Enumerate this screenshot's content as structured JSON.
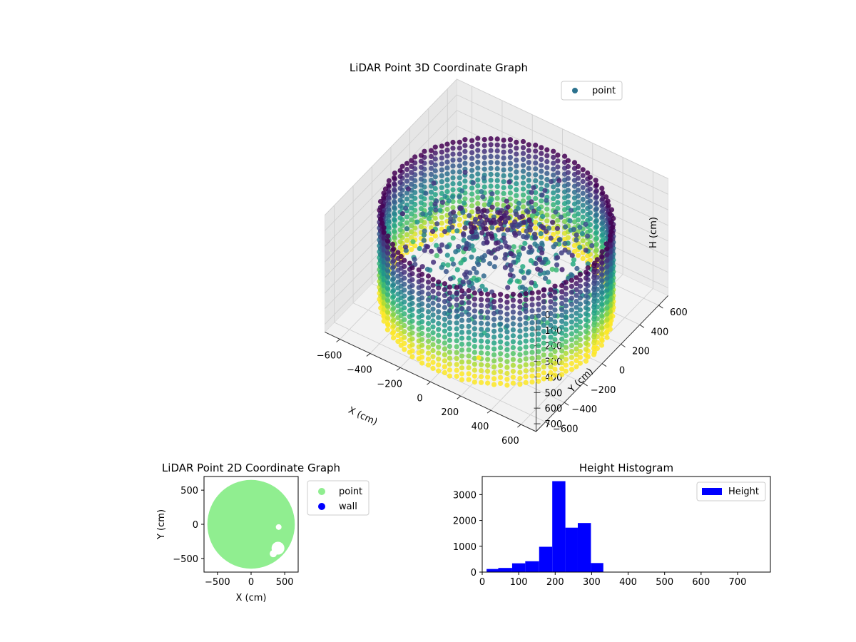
{
  "chart_data": [
    {
      "type": "scatter3d",
      "title": "LiDAR Point 3D Coordinate Graph",
      "xlabel": "X (cm)",
      "ylabel": "Y (cm)",
      "zlabel": "H (cm)",
      "xticks": [
        -600,
        -400,
        -200,
        0,
        200,
        400,
        600
      ],
      "yticks": [
        -600,
        -400,
        -200,
        0,
        200,
        400,
        600
      ],
      "zticks": [
        0,
        100,
        200,
        300,
        400,
        500,
        600,
        700
      ],
      "xlim": [
        -700,
        700
      ],
      "ylim": [
        -700,
        700
      ],
      "zlim": [
        0,
        750
      ],
      "z_inverted": true,
      "colormap": "viridis",
      "legend": [
        {
          "name": "point",
          "color": "#2c728e",
          "marker": "circle"
        }
      ],
      "legend_position": "upper-right",
      "wall_ring": {
        "center": [
          0,
          0
        ],
        "radius": 650,
        "h_range": [
          130,
          730
        ]
      },
      "center_cluster": {
        "x": [
          -150,
          150
        ],
        "y": [
          -150,
          150
        ],
        "h": [
          150,
          230
        ]
      },
      "outlier_point": {
        "x": 120,
        "y": -380,
        "h": 740,
        "color": "#fde725"
      }
    },
    {
      "type": "scatter",
      "title": "LiDAR Point 2D Coordinate Graph",
      "xlabel": "X (cm)",
      "ylabel": "Y (cm)",
      "xticks": [
        -500,
        0,
        500
      ],
      "yticks": [
        500,
        0,
        -500
      ],
      "xlim": [
        -700,
        700
      ],
      "ylim": [
        -700,
        700
      ],
      "series": [
        {
          "name": "point",
          "color": "#90ee90",
          "shape": "filled disk",
          "center": [
            0,
            0
          ],
          "radius": 650
        },
        {
          "name": "wall",
          "color": "#0000ff"
        }
      ],
      "legend_position": "outside-right"
    },
    {
      "type": "bar",
      "title": "Height Histogram",
      "xlabel": "",
      "ylabel": "",
      "xticks": [
        0,
        100,
        200,
        300,
        400,
        500,
        600,
        700
      ],
      "yticks": [
        0,
        1000,
        2000,
        3000
      ],
      "xlim": [
        0,
        790
      ],
      "ylim": [
        0,
        3700
      ],
      "color": "#0000ff",
      "bins": [
        {
          "start": 12,
          "end": 44,
          "count": 120
        },
        {
          "start": 44,
          "end": 82,
          "count": 160
        },
        {
          "start": 82,
          "end": 118,
          "count": 340
        },
        {
          "start": 118,
          "end": 156,
          "count": 420
        },
        {
          "start": 156,
          "end": 192,
          "count": 980
        },
        {
          "start": 192,
          "end": 228,
          "count": 3520
        },
        {
          "start": 228,
          "end": 262,
          "count": 1720
        },
        {
          "start": 262,
          "end": 298,
          "count": 1900
        },
        {
          "start": 298,
          "end": 332,
          "count": 350
        }
      ],
      "legend": [
        {
          "name": "Height",
          "color": "#0000ff"
        }
      ],
      "legend_position": "upper-right"
    }
  ]
}
